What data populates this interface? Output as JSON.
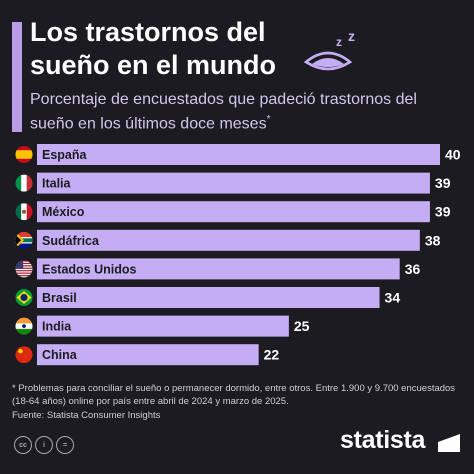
{
  "header": {
    "title": "Los trastornos del sueño en el mundo",
    "subtitle": "Porcentaje de encuestados que padeció trastornos del sueño en los últimos doce meses",
    "subtitle_mark": "*",
    "sleep_icon": "sleeping-eye-icon",
    "sleep_letters": "z z"
  },
  "chart_data": {
    "type": "bar",
    "orientation": "horizontal",
    "categories": [
      "España",
      "Italia",
      "México",
      "Sudáfrica",
      "Estados Unidos",
      "Brasil",
      "India",
      "China"
    ],
    "values": [
      40,
      39,
      39,
      38,
      36,
      34,
      25,
      22
    ],
    "flags": [
      "spain-flag-icon",
      "italy-flag-icon",
      "mexico-flag-icon",
      "south-africa-flag-icon",
      "usa-flag-icon",
      "brazil-flag-icon",
      "india-flag-icon",
      "china-flag-icon"
    ],
    "xlim": [
      0,
      40
    ],
    "bar_color": "#c4adf2",
    "grid": false,
    "title": "",
    "xlabel": "",
    "ylabel": ""
  },
  "footer": {
    "footnote": "* Problemas para conciliar el sueño o permanecer dormido, entre otros. Entre 1.900 y 9.700 encuestados (18-64 años) online por país entre abril de 2024 y marzo de 2025.",
    "source": "Fuente: Statista Consumer Insights",
    "license_icons": [
      "cc",
      "i",
      "="
    ],
    "brand": "statista"
  },
  "colors": {
    "background": "#1b1b21",
    "accent": "#b89ce6",
    "bar": "#c4adf2"
  }
}
